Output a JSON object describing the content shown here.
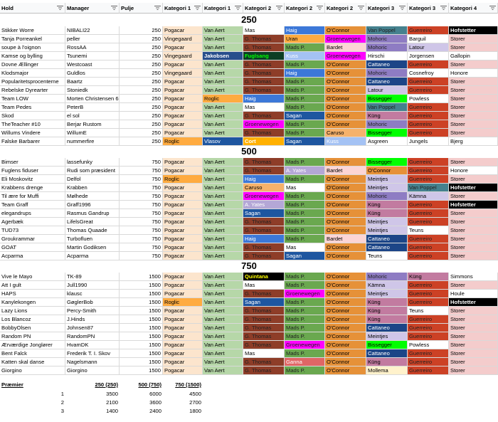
{
  "headers": [
    "Hold",
    "Manager",
    "Pulje",
    "Kategori 1",
    "Kategori 1",
    "Kategori 2",
    "Kategori 2",
    "Kategori 2",
    "Kategori 3",
    "Kategori 3",
    "Kategori 4"
  ],
  "colors": {
    "Pogacar": "#fce5cd",
    "Vingegaard": "#fce5cd",
    "Roglic": "#ffab40",
    "Jakobsen": "#274e8c",
    "Van Aert": "#b6d7a8",
    "Vlasov": "#1e56a0",
    "Kuss": "#a4c2f4",
    "Mas": "#ffffff",
    "G. Thomas": "#8e3d28",
    "Haig": "#3c78d8",
    "Uran": "#ffab40",
    "Fuglsang": "#0b3d24",
    "Mads P.": "#6aa84f",
    "Sagan": "#1e56a0",
    "Caruso": "#f6b26b",
    "Groenewegen": "#ff00ff",
    "Cort": "#ffb000",
    "A. Yates": "#b4a7d6",
    "Ganna": "#e06666",
    "O'Connor": "#e69138",
    "Bardet": "#fcd5d5",
    "Kuss2": "#a4c2f4",
    "Van Poppel": "#45818e",
    "Mohoric": "#8e7cc3",
    "Cattaneo": "#1c4587",
    "Hirschi": "#ffffff",
    "Kung": "#c27ba0",
    "Bissegger": "#00ff00",
    "Latour": "#cfc6e8",
    "Meintjes": "#cfc6e8",
    "Asgreen": "#ffffff",
    "Kamna": "#cfc6e8",
    "Mollema": "#fff2cc",
    "Guerreiro": "#cc4125",
    "Barguil": "#ffffff",
    "Jorgensen": "#ffffff",
    "Cosnefroy": "#ffffff",
    "Powless": "#ffffff",
    "Jungels": "#ffffff",
    "Teuns": "#ffffff",
    "Hofstetter": "#000000",
    "Storer": "#f4cccc",
    "Gallopin": "#ffffff",
    "Honore": "#ffffff",
    "Bjerg": "#ffffff",
    "Simmons": "#ffffff",
    "Houle": "#ffffff",
    "Quintana": "#000000"
  },
  "sections": [
    {
      "title": "250",
      "rows": [
        [
          "Stikker Worre",
          "NIBALI22",
          "250",
          "Pogacar",
          "Van Aert",
          "Mas",
          "Haig",
          "O'Connor",
          "Van Poppel",
          "Guerreiro",
          "Hofstetter"
        ],
        [
          "Tanja Porreankel",
          "peller",
          "250",
          "Vingegaard",
          "Van Aert",
          "G. Thomas",
          "Uran",
          "Groenewegen",
          "Mohoric",
          "Barguil",
          "Storer"
        ],
        [
          "soupe à l'oignon",
          "RossAA",
          "250",
          "Pogacar",
          "Van Aert",
          "G. Thomas",
          "Mads P.",
          "Bardet",
          "Mohoric",
          "Latour",
          "Storer"
        ],
        [
          "Kamse og bylling",
          "Tsunemi",
          "250",
          "Vingegaard",
          "Jakobsen",
          "Fuglsang",
          "Kuss",
          "Groenewegen",
          "Hirschi",
          "Jorgensen",
          "Gallopin"
        ],
        [
          "Dovne Ællinger",
          "Westcoast",
          "250",
          "Pogacar",
          "Van Aert",
          "G. Thomas",
          "Mads P.",
          "O'Connor",
          "Cattaneo",
          "Guerreiro",
          "Storer"
        ],
        [
          "Klodsmajor",
          "Guldlos",
          "250",
          "Vingegaard",
          "Van Aert",
          "G. Thomas",
          "Haig",
          "O'Connor",
          "Mohoric",
          "Cosnefroy",
          "Honore"
        ],
        [
          "Popularitetsprocenterne",
          "Baartz",
          "250",
          "Pogacar",
          "Van Aert",
          "G. Thomas",
          "Mads P.",
          "O'Connor",
          "Cattaneo",
          "Guerreiro",
          "Storer"
        ],
        [
          "Rebelske Dyrearter",
          "Stoniedk",
          "250",
          "Pogacar",
          "Van Aert",
          "G. Thomas",
          "Mads P.",
          "O'Connor",
          "Latour",
          "Guerreiro",
          "Storer"
        ],
        [
          "Team LOW",
          "Morten Christensen 6",
          "250",
          "Pogacar",
          "Roglic",
          "Haig",
          "Mads P.",
          "O'Connor",
          "Bissegger",
          "Powless",
          "Storer"
        ],
        [
          "Team Pedes",
          "PeterB",
          "250",
          "Pogacar",
          "Van Aert",
          "Mas",
          "Mads P.",
          "O'Connor",
          "Van Poppel",
          "Guerreiro",
          "Storer"
        ],
        [
          "Skod",
          "el sol",
          "250",
          "Pogacar",
          "Van Aert",
          "G. Thomas",
          "Sagan",
          "O'Connor",
          "Küng",
          "Guerreiro",
          "Storer"
        ],
        [
          "TheTeacher #10",
          "Berjar Rustom",
          "250",
          "Pogacar",
          "Van Aert",
          "Groenewegen",
          "Mads P.",
          "O'Connor",
          "Mohoric",
          "Guerreiro",
          "Storer"
        ],
        [
          "Willums Vindere",
          "WillumE",
          "250",
          "Pogacar",
          "Van Aert",
          "G. Thomas",
          "Mads P.",
          "Caruso",
          "Bissegger",
          "Guerreiro",
          "Storer"
        ],
        [
          "Falske Barbarer",
          "nummerfire",
          "250",
          "Roglic",
          "Vlasov",
          "Cort",
          "Sagan",
          "Kuss",
          "Asgreen",
          "Jungels",
          "Bjerg"
        ]
      ]
    },
    {
      "title": "500",
      "rows": [
        [
          "Bimser",
          "lassefunky",
          "750",
          "Pogacar",
          "Van Aert",
          "G. Thomas",
          "Mads P.",
          "O'Connor",
          "Bissegger",
          "Guerreiro",
          "Storer"
        ],
        [
          "Fuglens fiduser",
          "Rudi som præsident",
          "750",
          "Pogacar",
          "Van Aert",
          "G. Thomas",
          "A. Yates",
          "Bardet",
          "O'Connor",
          "Guerreiro",
          "Honore"
        ],
        [
          "Eli Moskovitz",
          "Delfol",
          "750",
          "Roglic",
          "Van Aert",
          "Haig",
          "Mads P.",
          "O'Connor",
          "Meintjes",
          "Guerreiro",
          "Storer"
        ],
        [
          "Krabbens drenge",
          "Krabben",
          "750",
          "Pogacar",
          "Van Aert",
          "Caruso",
          "Mas",
          "O'Connor",
          "Meintjes",
          "Van Poppel",
          "Hofstetter"
        ],
        [
          "Til ære for Muffi",
          "Mølhede",
          "750",
          "Pogacar",
          "Van Aert",
          "Groenewegen",
          "Mads P.",
          "O'Connor",
          "Mohoric",
          "Kämna",
          "Storer"
        ],
        [
          "Team Graff",
          "Graff1996",
          "750",
          "Pogacar",
          "Van Aert",
          "A. Yates",
          "Mads P.",
          "O'Connor",
          "Küng",
          "Guerreiro",
          "Hofstetter"
        ],
        [
          "elegandrups",
          "Rasmus Gandrup",
          "750",
          "Pogacar",
          "Van Aert",
          "Sagan",
          "Mads P.",
          "O'Connor",
          "Küng",
          "Guerreiro",
          "Storer"
        ],
        [
          "Agerbæk",
          "LifelsGreat",
          "750",
          "Pogacar",
          "Van Aert",
          "G. Thomas",
          "Mads P.",
          "O'Connor",
          "Meintjes",
          "Guerreiro",
          "Storer"
        ],
        [
          "TUD73",
          "Thomas Quaade",
          "750",
          "Pogacar",
          "Van Aert",
          "G. Thomas",
          "Mads P.",
          "O'Connor",
          "Meintjes",
          "Teuns",
          "Storer"
        ],
        [
          "Groukrammar",
          "Turbofluen",
          "750",
          "Pogacar",
          "Van Aert",
          "Haig",
          "Mads P.",
          "Bardet",
          "Cattaneo",
          "Guerreiro",
          "Storer"
        ],
        [
          "GOAT",
          "Martin Godiksen",
          "750",
          "Pogacar",
          "Van Aert",
          "G. Thomas",
          "Mas",
          "O'Connor",
          "Cattaneo",
          "Guerreiro",
          "Storer"
        ],
        [
          "Acparma",
          "Acparma",
          "750",
          "Pogacar",
          "Van Aert",
          "G. Thomas",
          "Sagan",
          "O'Connor",
          "Teuns",
          "Guerreiro",
          "Storer"
        ]
      ]
    },
    {
      "title": "750",
      "rows": [
        [
          "Vive le Mayo",
          "TK-89",
          "1500",
          "Pogacar",
          "Van Aert",
          "Quintana",
          "Mads P.",
          "O'Connor",
          "Mohoric",
          "Küng",
          "Simmons"
        ],
        [
          "Att I gult",
          "Jull1990",
          "1500",
          "Pogacar",
          "Van Aert",
          "Mas",
          "Mads P.",
          "O'Connor",
          "Kämna",
          "Guerreiro",
          "Storer"
        ],
        [
          "HAPS",
          "klausc",
          "1500",
          "Pogacar",
          "Van Aert",
          "G. Thomas",
          "Groenewegen",
          "O'Connor",
          "Meintjes",
          "Guerreiro",
          "Houle"
        ],
        [
          "Kanylekongen",
          "GøglerBob",
          "1500",
          "Roglic",
          "Van Aert",
          "Sagan",
          "Mads P.",
          "O'Connor",
          "Küng",
          "Guerreiro",
          "Hofstetter"
        ],
        [
          "Lazy Lions",
          "Percy-Smith",
          "1500",
          "Pogacar",
          "Van Aert",
          "G. Thomas",
          "Mads P.",
          "O'Connor",
          "Küng",
          "Teuns",
          "Storer"
        ],
        [
          "Los Blancoz",
          "J.Hinds",
          "1500",
          "Pogacar",
          "Van Aert",
          "G. Thomas",
          "Mads P.",
          "O'Connor",
          "Küng",
          "Guerreiro",
          "Storer"
        ],
        [
          "BobbyOlsen",
          "Johnsen87",
          "1500",
          "Pogacar",
          "Van Aert",
          "G. Thomas",
          "Mads P.",
          "O'Connor",
          "Cattaneo",
          "Guerreiro",
          "Storer"
        ],
        [
          "Random PN",
          "RandomPN",
          "1500",
          "Pogacar",
          "Van Aert",
          "G. Thomas",
          "Mads P.",
          "O'Connor",
          "Meintjes",
          "Guerreiro",
          "Storer"
        ],
        [
          "Ærværdige Jonglører",
          "HvamDK",
          "1500",
          "Pogacar",
          "Van Aert",
          "G. Thomas",
          "Groenewegen",
          "O'Connor",
          "Bissegger",
          "Powless",
          "Storer"
        ],
        [
          "Bent Falck",
          "Frederik T. I. Skov",
          "1500",
          "Pogacar",
          "Van Aert",
          "Mas",
          "Mads P.",
          "O'Connor",
          "Cattaneo",
          "Guerreiro",
          "Storer"
        ],
        [
          "Katten skal danse",
          "Nagelsmann",
          "1500",
          "Pogacar",
          "Van Aert",
          "G. Thomas",
          "Ganna",
          "O'Connor",
          "Küng",
          "Guerreiro",
          "Storer"
        ],
        [
          "Giorgino",
          "Giorgino",
          "1500",
          "Pogacar",
          "Van Aert",
          "G. Thomas",
          "Mads P.",
          "O'Connor",
          "Mollema",
          "Guerreiro",
          "Storer"
        ]
      ]
    }
  ],
  "prizes": {
    "label": "Præmier",
    "headers": [
      "250 (250)",
      "500 (750)",
      "750 (1500)"
    ],
    "rows": [
      [
        "1",
        "3500",
        "6000",
        "4500"
      ],
      [
        "2",
        "2100",
        "3600",
        "2700"
      ],
      [
        "3",
        "1400",
        "2400",
        "1800"
      ]
    ]
  }
}
